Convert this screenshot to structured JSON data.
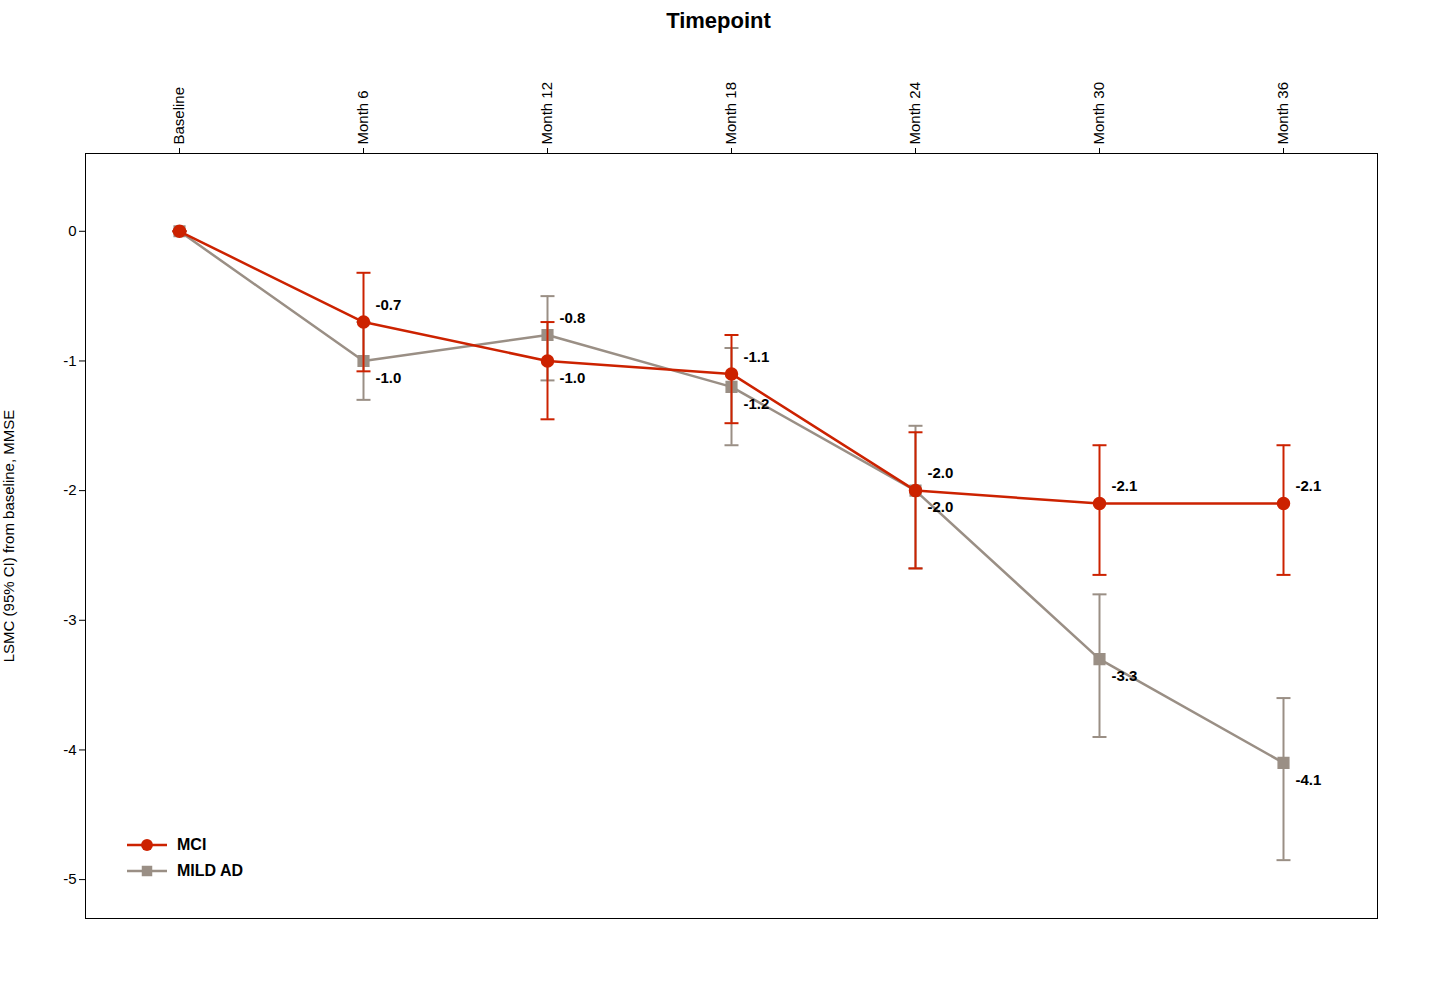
{
  "chart_data": {
    "type": "line",
    "title": "Timepoint",
    "y_label": "LSMC (95% CI) from baseline, MMSE",
    "categories": [
      "Baseline",
      "Month 6",
      "Month 12",
      "Month 18",
      "Month 24",
      "Month 30",
      "Month 36"
    ],
    "series": [
      {
        "name": "MCI",
        "color": "#CC2200",
        "marker": "circle",
        "values": [
          0.0,
          -0.7,
          -1.0,
          -1.1,
          -2.0,
          -2.1,
          -2.1
        ],
        "error_low": [
          0.0,
          0.38,
          0.45,
          0.38,
          0.6,
          0.55,
          0.55
        ],
        "error_high": [
          0.0,
          0.38,
          0.3,
          0.3,
          0.45,
          0.45,
          0.45
        ],
        "value_labels": [
          null,
          "-0.7",
          "-1.0",
          "-1.1",
          "-2.0",
          "-2.1",
          "-2.1"
        ]
      },
      {
        "name": "MILD AD",
        "color": "#9A8F85",
        "marker": "square",
        "values": [
          0.0,
          -1.0,
          -0.8,
          -1.2,
          -2.0,
          -3.3,
          -4.1
        ],
        "error_low": [
          0.0,
          0.3,
          0.35,
          0.45,
          0.6,
          0.6,
          0.75
        ],
        "error_high": [
          0.0,
          0.3,
          0.3,
          0.3,
          0.5,
          0.5,
          0.5
        ],
        "value_labels": [
          null,
          "-1.0",
          "-0.8",
          "-1.2",
          "-2.0",
          "-3.3",
          "-4.1"
        ]
      }
    ],
    "ylim": [
      -5.3,
      0.6
    ],
    "yticks": [
      0,
      -1,
      -2,
      -3,
      -4,
      -5
    ],
    "grid": false,
    "legend": "lower left",
    "data_labels": true
  }
}
